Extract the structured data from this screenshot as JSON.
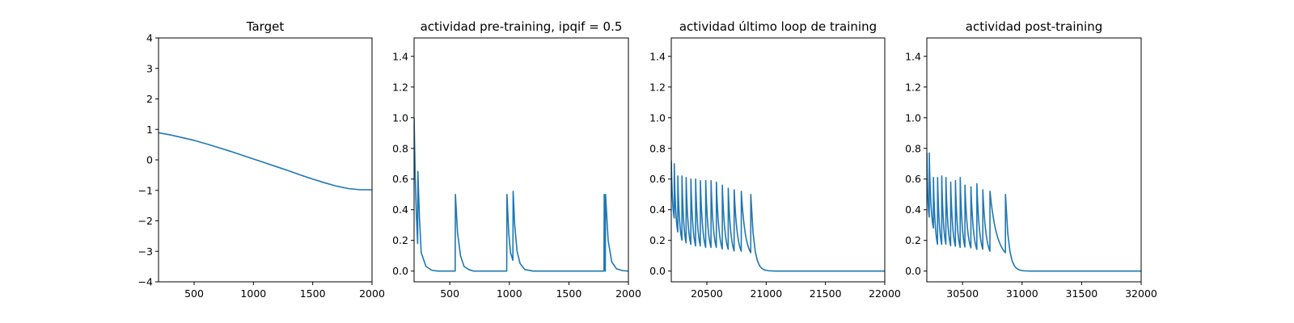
{
  "chart_data": [
    {
      "type": "line",
      "title": "Target",
      "xlim": [
        200,
        2000
      ],
      "ylim": [
        -4,
        4
      ],
      "xticks": [
        500,
        1000,
        1500,
        2000
      ],
      "yticks": [
        -4,
        -3,
        -2,
        -1,
        0,
        1,
        2,
        3,
        4
      ],
      "x": [
        200,
        300,
        400,
        500,
        600,
        700,
        800,
        900,
        1000,
        1100,
        1200,
        1300,
        1400,
        1500,
        1600,
        1700,
        1800,
        1900,
        2000
      ],
      "series": [
        {
          "values": [
            0.89,
            0.82,
            0.73,
            0.64,
            0.53,
            0.41,
            0.29,
            0.16,
            0.03,
            -0.1,
            -0.23,
            -0.36,
            -0.5,
            -0.63,
            -0.75,
            -0.86,
            -0.94,
            -0.98,
            -0.98
          ]
        }
      ]
    },
    {
      "type": "line",
      "title": "actividad pre-training, ipqif = 0.5",
      "xlim": [
        200,
        2000
      ],
      "ylim": [
        -0.07,
        1.52
      ],
      "xticks": [
        500,
        1000,
        1500,
        2000
      ],
      "yticks": [
        0.0,
        0.2,
        0.4,
        0.6,
        0.8,
        1.0,
        1.2,
        1.4
      ],
      "x": [
        200,
        210,
        220,
        230,
        232,
        245,
        260,
        300,
        350,
        400,
        450,
        500,
        545,
        547,
        565,
        590,
        620,
        660,
        700,
        800,
        900,
        970,
        978,
        980,
        995,
        1010,
        1030,
        1032,
        1045,
        1065,
        1090,
        1130,
        1200,
        1400,
        1600,
        1795,
        1797,
        1806,
        1808,
        1830,
        1860,
        1900,
        1950,
        2000
      ],
      "series": [
        {
          "values": [
            1.0,
            0.6,
            0.35,
            0.18,
            0.65,
            0.35,
            0.12,
            0.03,
            0.005,
            0.0,
            0.0,
            0.0,
            0.0,
            0.5,
            0.25,
            0.1,
            0.03,
            0.01,
            0.0,
            0.0,
            0.0,
            0.0,
            0.0,
            0.5,
            0.25,
            0.12,
            0.07,
            0.52,
            0.3,
            0.13,
            0.05,
            0.01,
            0.0,
            0.0,
            0.0,
            0.0,
            0.5,
            0.0,
            0.5,
            0.2,
            0.06,
            0.015,
            0.003,
            0.0
          ]
        }
      ]
    },
    {
      "type": "line",
      "title": "actividad último loop de training",
      "xlim": [
        20200,
        22000
      ],
      "ylim": [
        -0.07,
        1.52
      ],
      "xticks": [
        20500,
        21000,
        21500,
        22000
      ],
      "yticks": [
        0.0,
        0.2,
        0.4,
        0.6,
        0.8,
        1.0,
        1.2,
        1.4
      ],
      "spike_times": [
        20200,
        20225,
        20255,
        20290,
        20325,
        20365,
        20405,
        20445,
        20490,
        20535,
        20580,
        20630,
        20680,
        20730,
        20790,
        20870
      ],
      "spike_peaks": [
        0.72,
        0.7,
        0.62,
        0.62,
        0.61,
        0.6,
        0.6,
        0.59,
        0.59,
        0.59,
        0.58,
        0.56,
        0.54,
        0.53,
        0.52,
        0.5
      ],
      "spike_troughs": [
        0.3,
        0.2,
        0.15,
        0.13,
        0.12,
        0.11,
        0.11,
        0.1,
        0.1,
        0.1,
        0.09,
        0.09,
        0.08,
        0.08,
        0.07,
        0.0
      ]
    },
    {
      "type": "line",
      "title": "actividad post-training",
      "xlim": [
        30200,
        32000
      ],
      "ylim": [
        -0.07,
        1.52
      ],
      "xticks": [
        30500,
        31000,
        31500,
        32000
      ],
      "yticks": [
        0.0,
        0.2,
        0.4,
        0.6,
        0.8,
        1.0,
        1.2,
        1.4
      ],
      "spike_times": [
        30200,
        30220,
        30255,
        30290,
        30325,
        30360,
        30400,
        30440,
        30480,
        30520,
        30570,
        30620,
        30670,
        30730,
        30860
      ],
      "spike_peaks": [
        0.77,
        0.77,
        0.61,
        0.61,
        0.62,
        0.61,
        0.58,
        0.59,
        0.61,
        0.56,
        0.55,
        0.57,
        0.53,
        0.52,
        0.5
      ],
      "spike_troughs": [
        0.3,
        0.22,
        0.12,
        0.12,
        0.12,
        0.11,
        0.11,
        0.1,
        0.1,
        0.1,
        0.09,
        0.09,
        0.08,
        0.07,
        0.0
      ]
    }
  ],
  "style": {
    "line_color": "#1f77b4"
  }
}
